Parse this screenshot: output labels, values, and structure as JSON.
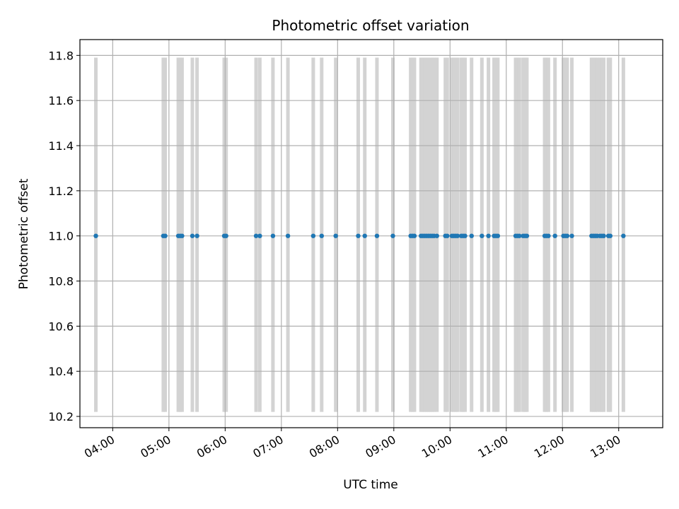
{
  "chart_data": {
    "type": "scatter",
    "title": "Photometric offset variation",
    "xlabel": "UTC time",
    "ylabel": "Photometric offset",
    "x_axis_kind": "time",
    "xlim": [
      "03:25",
      "13:47"
    ],
    "ylim": [
      10.15,
      11.87
    ],
    "x_ticks": [
      "04:00",
      "05:00",
      "06:00",
      "07:00",
      "08:00",
      "09:00",
      "10:00",
      "11:00",
      "12:00",
      "13:00"
    ],
    "y_ticks": [
      10.2,
      10.4,
      10.6,
      10.8,
      11.0,
      11.2,
      11.4,
      11.6,
      11.8
    ],
    "grid": true,
    "point_color": "#1f77b4",
    "band_color": "#d3d3d3",
    "band_y_range": [
      10.22,
      11.79
    ],
    "points": {
      "y": 11.0,
      "x": [
        "03:42",
        "04:54",
        "04:56",
        "05:10",
        "05:12",
        "05:14",
        "05:25",
        "05:30",
        "05:59",
        "06:01",
        "06:33",
        "06:37",
        "06:51",
        "07:07",
        "07:34",
        "07:43",
        "07:58",
        "08:22",
        "08:29",
        "08:42",
        "08:59",
        "09:18",
        "09:20",
        "09:22",
        "09:29",
        "09:31",
        "09:33",
        "09:35",
        "09:37",
        "09:39",
        "09:41",
        "09:43",
        "09:46",
        "09:55",
        "09:57",
        "10:02",
        "10:04",
        "10:06",
        "10:08",
        "10:12",
        "10:14",
        "10:16",
        "10:23",
        "10:34",
        "10:41",
        "10:47",
        "10:49",
        "10:51",
        "11:10",
        "11:12",
        "11:14",
        "11:18",
        "11:20",
        "11:22",
        "11:41",
        "11:43",
        "11:45",
        "11:52",
        "12:01",
        "12:03",
        "12:05",
        "12:10",
        "12:31",
        "12:33",
        "12:35",
        "12:37",
        "12:40",
        "12:42",
        "12:44",
        "12:49",
        "12:51",
        "13:05"
      ]
    }
  }
}
